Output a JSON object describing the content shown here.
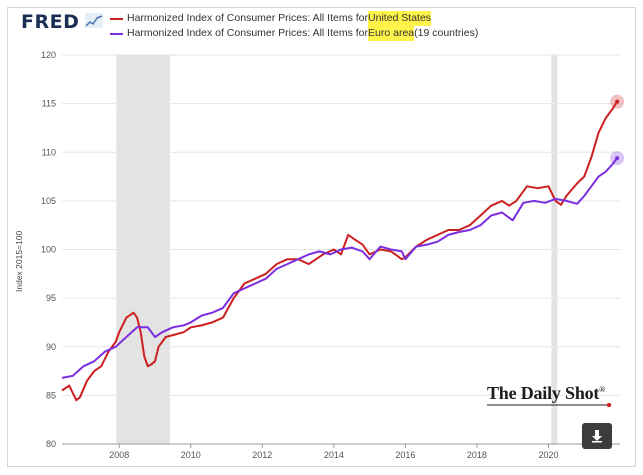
{
  "header": {
    "logo": "FRED",
    "legend": [
      {
        "prefix": "Harmonized Index of Consumer Prices: All Items for ",
        "highlight": "United States",
        "suffix": "",
        "color": "#cc1f1f"
      },
      {
        "prefix": "Harmonized Index of Consumer Prices: All Items for ",
        "highlight": "Euro area",
        "suffix": " (19 countries)",
        "color": "#7b2fe0"
      }
    ]
  },
  "watermark": {
    "text": "The Daily Shot",
    "mark": "®"
  },
  "download_button": {
    "icon": "download-arrow-icon"
  },
  "chart_data": {
    "type": "line",
    "ylabel": "Index 2015=100",
    "ylim": [
      80,
      120
    ],
    "xlim": [
      2006.4,
      2022.0
    ],
    "y_ticks": [
      80,
      85,
      90,
      95,
      100,
      105,
      110,
      115,
      120
    ],
    "x_ticks": [
      2008,
      2010,
      2012,
      2014,
      2016,
      2018,
      2020
    ],
    "grid": "horizontal",
    "recession_bands": [
      [
        2007.917,
        2009.417
      ],
      [
        2020.083,
        2020.25
      ]
    ],
    "series": [
      {
        "name": "Harmonized Index of Consumer Prices: All Items for United States",
        "color": "#cc1f1f",
        "x": [
          2006.4,
          2006.6,
          2006.8,
          2006.9,
          2007.1,
          2007.3,
          2007.5,
          2007.7,
          2007.9,
          2008.0,
          2008.2,
          2008.4,
          2008.5,
          2008.6,
          2008.7,
          2008.8,
          2008.9,
          2009.0,
          2009.1,
          2009.3,
          2009.5,
          2009.8,
          2010.0,
          2010.3,
          2010.6,
          2010.9,
          2011.2,
          2011.5,
          2011.8,
          2012.1,
          2012.4,
          2012.7,
          2013.0,
          2013.3,
          2013.7,
          2014.0,
          2014.2,
          2014.4,
          2014.6,
          2014.8,
          2015.0,
          2015.3,
          2015.6,
          2015.9,
          2016.0,
          2016.3,
          2016.6,
          2016.9,
          2017.2,
          2017.5,
          2017.8,
          2018.1,
          2018.4,
          2018.7,
          2018.9,
          2019.1,
          2019.4,
          2019.7,
          2020.0,
          2020.2,
          2020.35,
          2020.5,
          2020.8,
          2021.0,
          2021.2,
          2021.4,
          2021.6,
          2021.8,
          2021.92
        ],
        "values": [
          85.5,
          86.0,
          84.5,
          84.8,
          86.5,
          87.5,
          88.0,
          89.5,
          90.5,
          91.5,
          93.0,
          93.5,
          93.0,
          91.5,
          89.0,
          88.0,
          88.2,
          88.5,
          90.0,
          91.0,
          91.2,
          91.5,
          92.0,
          92.2,
          92.5,
          93.0,
          95.0,
          96.5,
          97.0,
          97.5,
          98.5,
          99.0,
          99.0,
          98.5,
          99.5,
          100.0,
          99.5,
          101.5,
          101.0,
          100.5,
          99.5,
          100.0,
          99.8,
          99.0,
          99.2,
          100.3,
          101.0,
          101.5,
          102.0,
          102.0,
          102.5,
          103.5,
          104.5,
          105.0,
          104.5,
          105.0,
          106.5,
          106.3,
          106.5,
          105.0,
          104.6,
          105.5,
          106.8,
          107.5,
          109.5,
          112.0,
          113.5,
          114.5,
          115.2
        ]
      },
      {
        "name": "Harmonized Index of Consumer Prices: All Items for Euro area (19 countries)",
        "color": "#7b2fe0",
        "x": [
          2006.4,
          2006.7,
          2007.0,
          2007.3,
          2007.6,
          2007.9,
          2008.2,
          2008.5,
          2008.8,
          2009.0,
          2009.2,
          2009.5,
          2009.8,
          2010.0,
          2010.3,
          2010.6,
          2010.9,
          2011.2,
          2011.5,
          2011.8,
          2012.1,
          2012.4,
          2012.7,
          2013.0,
          2013.3,
          2013.6,
          2013.9,
          2014.2,
          2014.5,
          2014.8,
          2015.0,
          2015.3,
          2015.6,
          2015.9,
          2016.0,
          2016.3,
          2016.6,
          2016.9,
          2017.2,
          2017.5,
          2017.8,
          2018.1,
          2018.4,
          2018.7,
          2019.0,
          2019.3,
          2019.6,
          2019.9,
          2020.2,
          2020.5,
          2020.8,
          2021.0,
          2021.2,
          2021.4,
          2021.6,
          2021.8,
          2021.92
        ],
        "values": [
          86.8,
          87.0,
          88.0,
          88.5,
          89.5,
          90.0,
          91.0,
          92.0,
          92.0,
          91.0,
          91.5,
          92.0,
          92.2,
          92.5,
          93.2,
          93.5,
          94.0,
          95.5,
          96.0,
          96.5,
          97.0,
          98.0,
          98.5,
          99.0,
          99.5,
          99.8,
          99.5,
          100.0,
          100.2,
          99.8,
          99.0,
          100.3,
          100.0,
          99.8,
          99.0,
          100.3,
          100.5,
          100.8,
          101.5,
          101.8,
          102.0,
          102.5,
          103.5,
          103.8,
          103.0,
          104.8,
          105.0,
          104.8,
          105.2,
          105.0,
          104.7,
          105.5,
          106.5,
          107.5,
          108.0,
          108.8,
          109.4
        ]
      }
    ]
  }
}
